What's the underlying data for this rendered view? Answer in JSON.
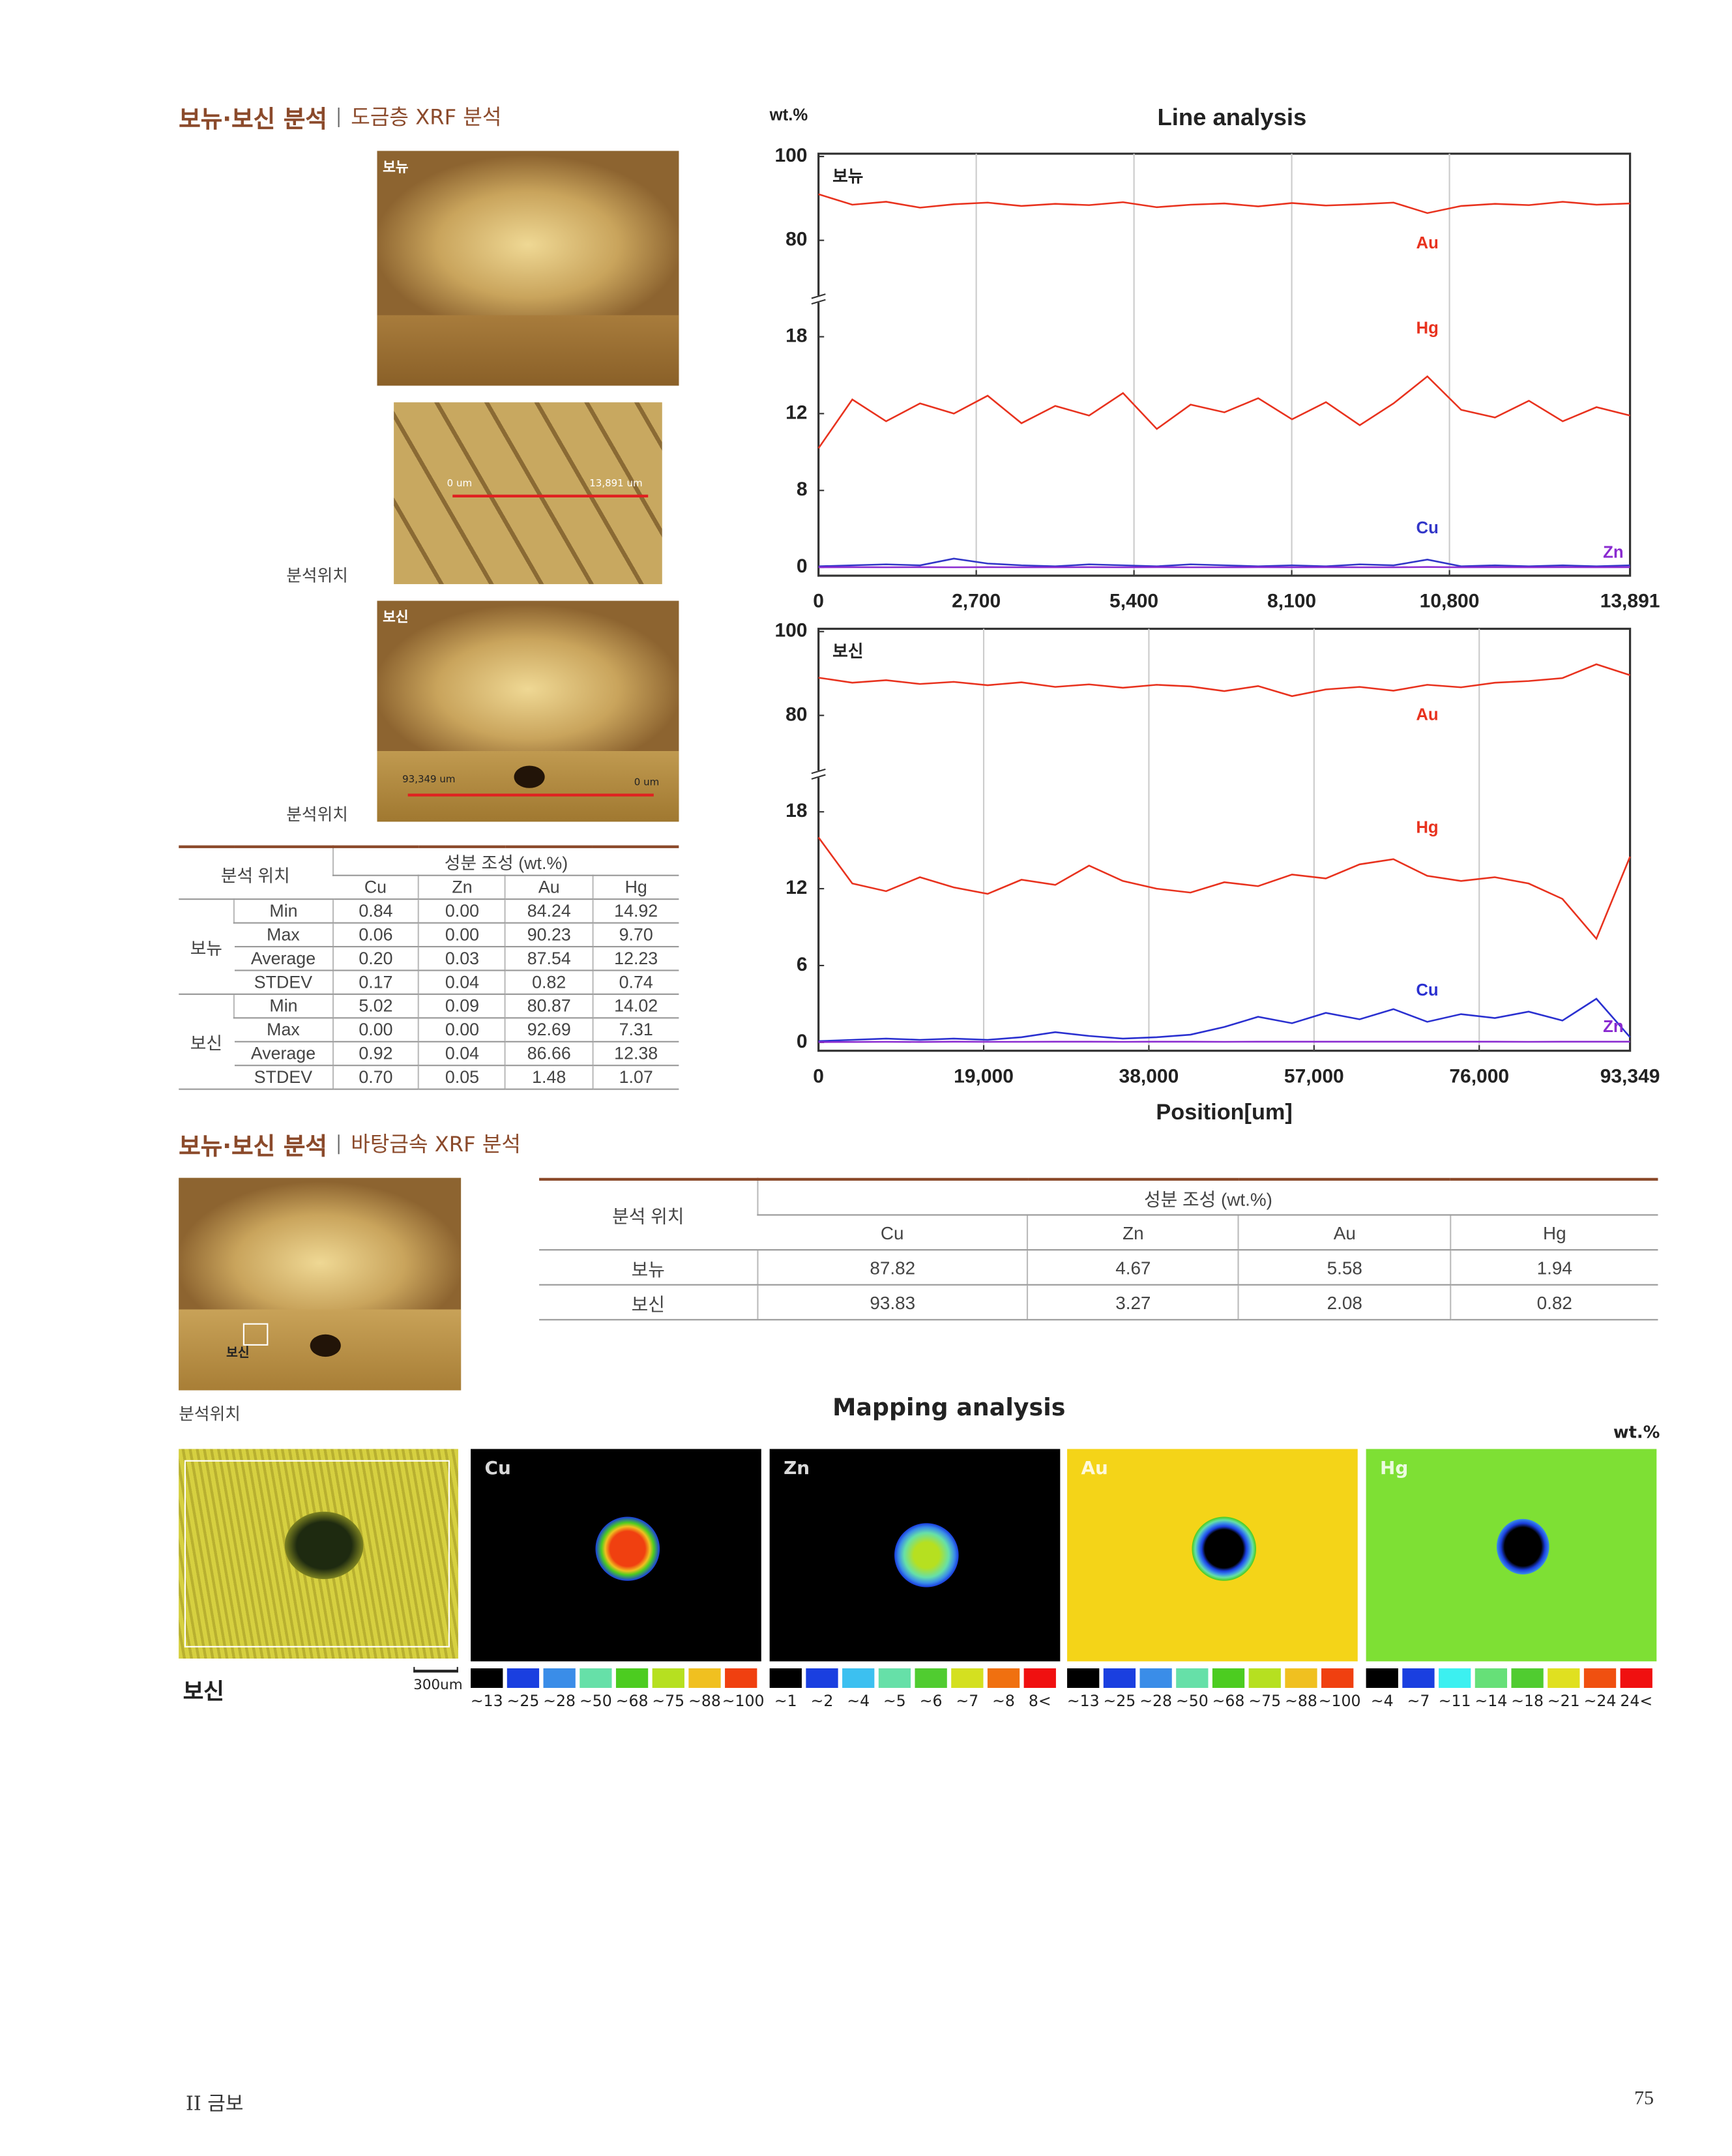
{
  "section1": {
    "title": "보뉴·보신 분석",
    "subtitle": "도금층 XRF 분석"
  },
  "photos": [
    {
      "label": "보뉴"
    },
    {
      "scale_start": "0 um",
      "scale_end": "13,891 um",
      "caption": "분석위치"
    },
    {
      "label": "보신",
      "scale_start": "93,349 um",
      "scale_end": "0 um",
      "caption": "분석위치"
    }
  ],
  "table1": {
    "header": [
      "분석 위치",
      "성분 조성 (wt.%)"
    ],
    "columns": [
      "Cu",
      "Zn",
      "Au",
      "Hg"
    ],
    "groups": [
      {
        "name": "보뉴",
        "rows": [
          {
            "stat": "Min",
            "cells": [
              "0.84",
              "0.00",
              "84.24",
              "14.92"
            ]
          },
          {
            "stat": "Max",
            "cells": [
              "0.06",
              "0.00",
              "90.23",
              "9.70"
            ]
          },
          {
            "stat": "Average",
            "cells": [
              "0.20",
              "0.03",
              "87.54",
              "12.23"
            ]
          },
          {
            "stat": "STDEV",
            "cells": [
              "0.17",
              "0.04",
              "0.82",
              "0.74"
            ]
          }
        ]
      },
      {
        "name": "보신",
        "rows": [
          {
            "stat": "Min",
            "cells": [
              "5.02",
              "0.09",
              "80.87",
              "14.02"
            ]
          },
          {
            "stat": "Max",
            "cells": [
              "0.00",
              "0.00",
              "92.69",
              "7.31"
            ]
          },
          {
            "stat": "Average",
            "cells": [
              "0.92",
              "0.04",
              "86.66",
              "12.38"
            ]
          },
          {
            "stat": "STDEV",
            "cells": [
              "0.70",
              "0.05",
              "1.48",
              "1.07"
            ]
          }
        ]
      }
    ]
  },
  "chart_data": [
    {
      "type": "line",
      "title": "Line analysis",
      "y_unit": "wt.%",
      "subtitle": "보뉴",
      "x": [
        0,
        579,
        1158,
        1737,
        2316,
        2895,
        3474,
        4053,
        4632,
        5211,
        5790,
        6369,
        6948,
        7527,
        8106,
        8685,
        9264,
        9843,
        10422,
        11001,
        11580,
        12159,
        12738,
        13317,
        13891
      ],
      "xlim": [
        0,
        13891
      ],
      "xticks": [
        0,
        {
          "value": 2700,
          "label": "2,700"
        },
        {
          "value": 5400,
          "label": "5,400"
        },
        {
          "value": 8100,
          "label": "8,100"
        },
        {
          "value": 10800,
          "label": "10,800"
        },
        {
          "value": 13891,
          "label": "13,891"
        }
      ],
      "ylim": [
        0,
        100
      ],
      "yticks": [
        0,
        8,
        12,
        18,
        80,
        100
      ],
      "y_break": [
        18,
        80
      ],
      "grid": true,
      "series": [
        {
          "name": "Au",
          "color": "#e8321e",
          "values": [
            91,
            88.5,
            89.2,
            87.8,
            88.6,
            89.0,
            88.2,
            88.7,
            88.4,
            89.1,
            87.9,
            88.5,
            88.8,
            88.1,
            88.9,
            88.3,
            88.6,
            89.0,
            86.5,
            88.2,
            88.7,
            88.4,
            89.2,
            88.5,
            88.8
          ]
        },
        {
          "name": "Hg",
          "color": "#e8321e",
          "values": [
            10.2,
            13.1,
            11.6,
            12.8,
            12.0,
            13.4,
            11.5,
            12.6,
            11.9,
            13.6,
            11.2,
            12.7,
            12.1,
            13.2,
            11.7,
            12.9,
            11.4,
            12.8,
            14.9,
            12.3,
            11.8,
            13.0,
            11.6,
            12.5,
            11.9
          ]
        },
        {
          "name": "Cu",
          "color": "#3236c8",
          "values": [
            0.1,
            0.2,
            0.3,
            0.2,
            0.9,
            0.4,
            0.2,
            0.1,
            0.3,
            0.2,
            0.1,
            0.3,
            0.2,
            0.1,
            0.2,
            0.1,
            0.3,
            0.2,
            0.8,
            0.1,
            0.2,
            0.1,
            0.2,
            0.1,
            0.2
          ]
        },
        {
          "name": "Zn",
          "color": "#8a2bd0",
          "values": [
            0,
            0.01,
            0,
            0.02,
            0,
            0.01,
            0,
            0,
            0.02,
            0,
            0.01,
            0,
            0,
            0.02,
            0,
            0.01,
            0,
            0,
            0.03,
            0,
            0.01,
            0,
            0.02,
            0,
            0.01
          ]
        }
      ]
    },
    {
      "type": "line",
      "subtitle": "보신",
      "x_label": "Position[um]",
      "x": [
        0,
        3890,
        7780,
        11670,
        15560,
        19450,
        23340,
        27230,
        31120,
        35010,
        38900,
        42790,
        46680,
        50570,
        54460,
        58350,
        62240,
        66130,
        70020,
        73910,
        77800,
        81690,
        85580,
        89470,
        93349
      ],
      "xlim": [
        0,
        93349
      ],
      "xticks": [
        0,
        {
          "value": 19000,
          "label": "19,000"
        },
        {
          "value": 38000,
          "label": "38,000"
        },
        {
          "value": 57000,
          "label": "57,000"
        },
        {
          "value": 76000,
          "label": "76,000"
        },
        {
          "value": 93349,
          "label": "93,349"
        }
      ],
      "ylim": [
        0,
        100
      ],
      "yticks": [
        0,
        6,
        12,
        18,
        80,
        100
      ],
      "y_break": [
        18,
        80
      ],
      "grid": true,
      "series": [
        {
          "name": "Au",
          "color": "#e8321e",
          "values": [
            89,
            87.8,
            88.4,
            87.5,
            88.0,
            87.2,
            87.9,
            86.8,
            87.4,
            86.6,
            87.3,
            86.9,
            85.8,
            87.0,
            84.6,
            86.2,
            86.8,
            85.9,
            87.3,
            86.7,
            87.8,
            88.2,
            88.9,
            92.2,
            89.6
          ]
        },
        {
          "name": "Hg",
          "color": "#e8321e",
          "values": [
            16,
            12.4,
            11.8,
            12.9,
            12.1,
            11.6,
            12.7,
            12.3,
            13.8,
            12.6,
            12.0,
            11.7,
            12.5,
            12.2,
            13.1,
            12.8,
            13.9,
            14.3,
            13.0,
            12.6,
            12.9,
            12.4,
            11.2,
            8.1,
            14.5
          ]
        },
        {
          "name": "Cu",
          "color": "#2a30d0",
          "values": [
            0.1,
            0.2,
            0.3,
            0.2,
            0.3,
            0.2,
            0.4,
            0.8,
            0.5,
            0.3,
            0.4,
            0.6,
            1.2,
            2.0,
            1.5,
            2.3,
            1.8,
            2.6,
            1.6,
            2.2,
            1.9,
            2.4,
            1.7,
            3.4,
            0.4
          ]
        },
        {
          "name": "Zn",
          "color": "#8a2bd0",
          "values": [
            0.02,
            0.03,
            0.04,
            0.03,
            0.05,
            0.04,
            0.04,
            0.05,
            0.05,
            0.04,
            0.05,
            0.06,
            0.04,
            0.05,
            0.06,
            0.05,
            0.05,
            0.06,
            0.05,
            0.06,
            0.05,
            0.04,
            0.05,
            0.06,
            0.05
          ]
        }
      ]
    }
  ],
  "section2": {
    "title": "보뉴·보신 분석",
    "subtitle": "바탕금속 XRF 분석",
    "photo_label": "보신",
    "caption": "분석위치"
  },
  "table2": {
    "header": [
      "분석 위치",
      "성분 조성 (wt.%)"
    ],
    "columns": [
      "Cu",
      "Zn",
      "Au",
      "Hg"
    ],
    "rows": [
      {
        "name": "보뉴",
        "cells": [
          "87.82",
          "4.67",
          "5.58",
          "1.94"
        ]
      },
      {
        "name": "보신",
        "cells": [
          "93.83",
          "3.27",
          "2.08",
          "0.82"
        ]
      }
    ]
  },
  "mapping": {
    "title": "Mapping analysis",
    "unit": "wt.%",
    "photo_label": "보신",
    "scale": "300um",
    "maps": [
      {
        "name": "Cu",
        "legend": [
          "~13",
          "~25",
          "~28",
          "~50",
          "~68",
          "~75",
          "~88",
          "~100"
        ]
      },
      {
        "name": "Zn",
        "legend": [
          "~1",
          "~2",
          "~4",
          "~5",
          "~6",
          "~7",
          "~8",
          "8<"
        ]
      },
      {
        "name": "Au",
        "legend": [
          "~13",
          "~25",
          "~28",
          "~50",
          "~68",
          "~75",
          "~88",
          "~100"
        ]
      },
      {
        "name": "Hg",
        "legend": [
          "~4",
          "~7",
          "~11",
          "~14",
          "~18",
          "~21",
          "~24",
          "24<"
        ]
      }
    ]
  },
  "footer": {
    "section": "II 금보",
    "page": "75"
  }
}
